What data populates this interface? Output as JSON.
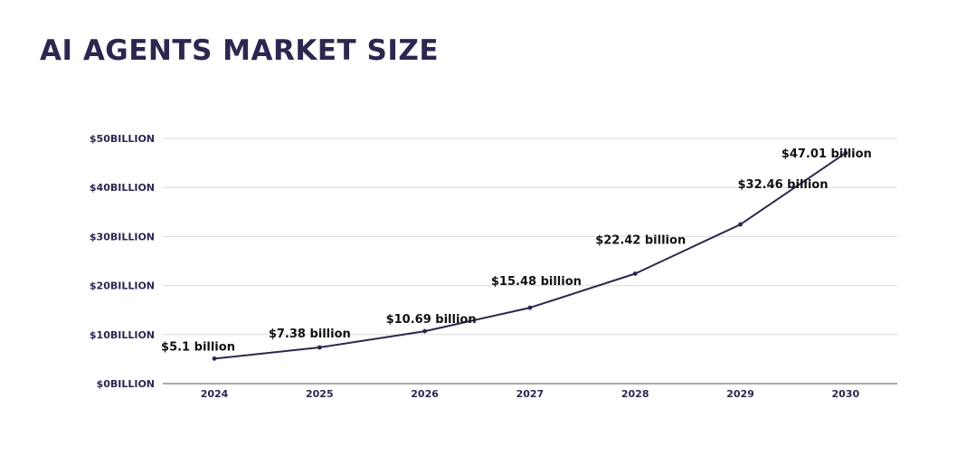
{
  "page": {
    "title": "AI AGENTS MARKET SIZE"
  },
  "colors": {
    "title": "#2b2750",
    "line": "#2b2750",
    "grid": "#d9d9de",
    "axis": "#555555",
    "tick_text": "#2b2750",
    "label_text": "#111111"
  },
  "chart_data": {
    "type": "line",
    "title": "AI AGENTS MARKET SIZE",
    "xlabel": "",
    "ylabel": "",
    "categories": [
      "2024",
      "2025",
      "2026",
      "2027",
      "2028",
      "2029",
      "2030"
    ],
    "series": [
      {
        "values": [
          5.1,
          7.38,
          10.69,
          15.48,
          22.42,
          32.46,
          47.01
        ]
      }
    ],
    "data_labels": [
      "$5.1 billion",
      "$7.38 billion",
      "$10.69 billion",
      "$15.48 billion",
      "$22.42 billion",
      "$32.46 billion",
      "$47.01 billion"
    ],
    "y_ticks": [
      0,
      10,
      20,
      30,
      40,
      50
    ],
    "y_tick_labels": [
      "$0BILLION",
      "$10BILLION",
      "$20BILLION",
      "$30BILLION",
      "$40BILLION",
      "$50BILLION"
    ],
    "ylim": [
      0,
      50
    ],
    "grid": true,
    "legend": "none"
  }
}
